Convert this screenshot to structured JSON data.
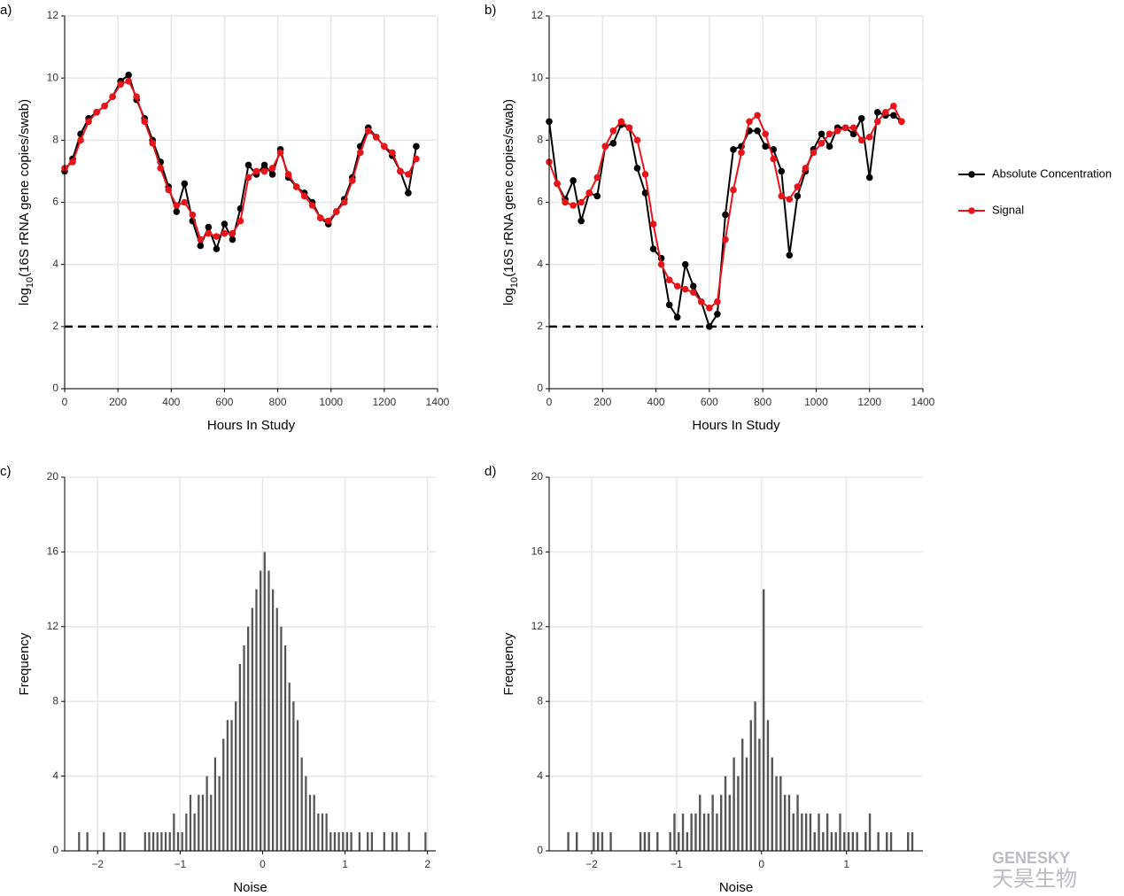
{
  "chart_data": [
    {
      "panel": "a)",
      "type": "line",
      "xlabel": "Hours In Study",
      "ylabel": {
        "prefix": "log",
        "sub": "10",
        "rest": "(16S rRNA gene copies/swab)"
      },
      "x": [
        0,
        30,
        60,
        90,
        120,
        150,
        180,
        210,
        240,
        270,
        300,
        330,
        360,
        390,
        420,
        450,
        480,
        510,
        540,
        570,
        600,
        630,
        660,
        690,
        720,
        750,
        780,
        810,
        840,
        870,
        900,
        930,
        960,
        990,
        1020,
        1050,
        1080,
        1110,
        1140,
        1170,
        1200,
        1230,
        1260,
        1290,
        1320
      ],
      "series": [
        {
          "color": "#000000",
          "values": [
            7.0,
            7.4,
            8.2,
            8.7,
            8.9,
            9.1,
            9.4,
            9.9,
            10.1,
            9.3,
            8.7,
            8.0,
            7.3,
            6.5,
            5.7,
            6.6,
            5.4,
            4.6,
            5.2,
            4.5,
            5.3,
            4.8,
            5.8,
            7.2,
            6.9,
            7.2,
            6.9,
            7.7,
            6.8,
            6.5,
            6.3,
            6.0,
            5.5,
            5.3,
            5.7,
            6.1,
            6.8,
            7.8,
            8.4,
            8.1,
            7.8,
            7.5,
            7.0,
            6.3,
            7.8
          ]
        },
        {
          "color": "#e8141a",
          "values": [
            7.1,
            7.3,
            8.0,
            8.6,
            8.9,
            9.1,
            9.4,
            9.8,
            9.9,
            9.4,
            8.6,
            7.9,
            7.1,
            6.4,
            5.9,
            6.0,
            5.6,
            4.8,
            5.0,
            4.9,
            5.0,
            5.0,
            5.4,
            6.8,
            7.0,
            7.0,
            7.1,
            7.6,
            6.9,
            6.5,
            6.2,
            5.9,
            5.5,
            5.4,
            5.7,
            6.0,
            6.7,
            7.6,
            8.3,
            8.1,
            7.8,
            7.6,
            7.0,
            6.9,
            7.4
          ]
        }
      ],
      "hline": 2,
      "xlim": [
        0,
        1400
      ],
      "xticks": [
        0,
        200,
        400,
        600,
        800,
        1000,
        1200,
        1400
      ],
      "ylim": [
        0,
        12
      ],
      "yticks": [
        0,
        2,
        4,
        6,
        8,
        10,
        12
      ],
      "grid": true
    },
    {
      "panel": "b)",
      "type": "line",
      "xlabel": "Hours In Study",
      "ylabel": {
        "prefix": "log",
        "sub": "10",
        "rest": "(16S rRNA gene copies/swab)"
      },
      "x": [
        0,
        30,
        60,
        90,
        120,
        150,
        180,
        210,
        240,
        270,
        300,
        330,
        360,
        390,
        420,
        450,
        480,
        510,
        540,
        570,
        600,
        630,
        660,
        690,
        720,
        750,
        780,
        810,
        840,
        870,
        900,
        930,
        960,
        990,
        1020,
        1050,
        1080,
        1110,
        1140,
        1170,
        1200,
        1230,
        1260,
        1290,
        1320
      ],
      "series": [
        {
          "color": "#000000",
          "values": [
            8.6,
            6.6,
            6.1,
            6.7,
            5.4,
            6.3,
            6.2,
            7.8,
            7.9,
            8.5,
            8.4,
            7.1,
            6.3,
            4.5,
            4.2,
            2.7,
            2.3,
            4.0,
            3.3,
            2.8,
            2.0,
            2.4,
            5.6,
            7.7,
            7.8,
            8.3,
            8.3,
            7.8,
            7.7,
            7.0,
            4.3,
            6.2,
            7.0,
            7.7,
            8.2,
            7.8,
            8.4,
            8.4,
            8.2,
            8.7,
            6.8,
            8.9,
            8.8,
            8.8,
            8.6
          ]
        },
        {
          "color": "#e8141a",
          "values": [
            7.3,
            6.6,
            6.0,
            5.9,
            6.0,
            6.3,
            6.8,
            7.8,
            8.3,
            8.6,
            8.4,
            8.0,
            6.9,
            5.3,
            4.0,
            3.5,
            3.3,
            3.2,
            3.1,
            2.8,
            2.6,
            2.8,
            4.8,
            6.4,
            7.6,
            8.6,
            8.8,
            8.2,
            7.4,
            6.2,
            6.1,
            6.5,
            7.1,
            7.6,
            7.9,
            8.2,
            8.3,
            8.4,
            8.4,
            8.0,
            8.1,
            8.6,
            8.9,
            9.1,
            8.6
          ]
        }
      ],
      "hline": 2,
      "xlim": [
        0,
        1400
      ],
      "xticks": [
        0,
        200,
        400,
        600,
        800,
        1000,
        1200,
        1400
      ],
      "ylim": [
        0,
        12
      ],
      "yticks": [
        0,
        2,
        4,
        6,
        8,
        10,
        12
      ],
      "grid": true
    },
    {
      "panel": "c)",
      "type": "histogram",
      "xlabel": "Noise",
      "ylabel": "Frequency",
      "color": "#555555",
      "bins": [
        -2.25,
        -2.2,
        -2.15,
        -2.1,
        -2.05,
        -2.0,
        -1.95,
        -1.9,
        -1.85,
        -1.8,
        -1.75,
        -1.7,
        -1.65,
        -1.6,
        -1.55,
        -1.5,
        -1.45,
        -1.4,
        -1.35,
        -1.3,
        -1.25,
        -1.2,
        -1.15,
        -1.1,
        -1.05,
        -1.0,
        -0.95,
        -0.9,
        -0.85,
        -0.8,
        -0.75,
        -0.7,
        -0.65,
        -0.6,
        -0.55,
        -0.5,
        -0.45,
        -0.4,
        -0.35,
        -0.3,
        -0.25,
        -0.2,
        -0.15,
        -0.1,
        -0.05,
        0,
        0.05,
        0.1,
        0.15,
        0.2,
        0.25,
        0.3,
        0.35,
        0.4,
        0.45,
        0.5,
        0.55,
        0.6,
        0.65,
        0.7,
        0.75,
        0.8,
        0.85,
        0.9,
        0.95,
        1.0,
        1.05,
        1.1,
        1.15,
        1.2,
        1.25,
        1.3,
        1.35,
        1.4,
        1.45,
        1.5,
        1.55,
        1.6,
        1.65,
        1.7,
        1.75,
        1.8,
        1.85,
        1.9,
        1.95,
        2.0
      ],
      "counts": [
        1,
        0,
        1,
        0,
        0,
        0,
        1,
        0,
        0,
        0,
        1,
        1,
        0,
        0,
        0,
        0,
        1,
        1,
        1,
        1,
        1,
        1,
        1,
        2,
        1,
        1,
        2,
        3,
        2,
        3,
        3,
        4,
        3,
        5,
        4,
        6,
        7,
        7,
        8,
        10,
        11,
        12,
        13,
        14,
        15,
        16,
        15,
        14,
        13,
        12,
        11,
        9,
        8,
        7,
        5,
        4,
        3,
        3,
        2,
        2,
        2,
        1,
        1,
        1,
        1,
        1,
        1,
        0,
        1,
        0,
        1,
        1,
        0,
        0,
        1,
        0,
        1,
        1,
        0,
        0,
        1,
        0,
        0,
        0,
        1
      ],
      "xlim": [
        -2.4,
        2.1
      ],
      "xticks": [
        {
          "value": -2,
          "label": "−2"
        },
        {
          "value": -1,
          "label": "−1"
        },
        0,
        1,
        2
      ],
      "ylim": [
        0,
        20
      ],
      "yticks": [
        0,
        4,
        8,
        12,
        16,
        20
      ],
      "grid": true
    },
    {
      "panel": "d)",
      "type": "histogram",
      "xlabel": "Noise",
      "ylabel": "Frequency",
      "color": "#555555",
      "bins": [
        -2.3,
        -2.25,
        -2.2,
        -2.15,
        -2.1,
        -2.05,
        -2.0,
        -1.95,
        -1.9,
        -1.85,
        -1.8,
        -1.75,
        -1.7,
        -1.65,
        -1.6,
        -1.55,
        -1.5,
        -1.45,
        -1.4,
        -1.35,
        -1.3,
        -1.25,
        -1.2,
        -1.15,
        -1.1,
        -1.05,
        -1.0,
        -0.95,
        -0.9,
        -0.85,
        -0.8,
        -0.75,
        -0.7,
        -0.65,
        -0.6,
        -0.55,
        -0.5,
        -0.45,
        -0.4,
        -0.35,
        -0.3,
        -0.25,
        -0.2,
        -0.15,
        -0.1,
        -0.05,
        0,
        0.05,
        0.1,
        0.15,
        0.2,
        0.25,
        0.3,
        0.35,
        0.4,
        0.45,
        0.5,
        0.55,
        0.6,
        0.65,
        0.7,
        0.75,
        0.8,
        0.85,
        0.9,
        0.95,
        1.0,
        1.05,
        1.1,
        1.15,
        1.2,
        1.25,
        1.3,
        1.35,
        1.4,
        1.45,
        1.5,
        1.55,
        1.6,
        1.65,
        1.7,
        1.75,
        1.8
      ],
      "counts": [
        1,
        0,
        1,
        0,
        0,
        0,
        1,
        1,
        1,
        0,
        1,
        0,
        0,
        0,
        0,
        0,
        0,
        1,
        1,
        1,
        0,
        1,
        0,
        0,
        1,
        2,
        1,
        2,
        1,
        2,
        2,
        3,
        2,
        2,
        3,
        2,
        3,
        4,
        3,
        5,
        4,
        6,
        5,
        7,
        8,
        6,
        14,
        7,
        5,
        4,
        4,
        3,
        3,
        2,
        3,
        2,
        2,
        2,
        1,
        2,
        1,
        2,
        1,
        1,
        2,
        1,
        1,
        1,
        1,
        0,
        1,
        2,
        0,
        1,
        0,
        1,
        1,
        0,
        0,
        0,
        1,
        1
      ],
      "xlim": [
        -2.5,
        1.9
      ],
      "xticks": [
        {
          "value": -2,
          "label": "−2"
        },
        {
          "value": -1,
          "label": "−1"
        },
        0,
        1
      ],
      "ylim": [
        0,
        20
      ],
      "yticks": [
        0,
        4,
        8,
        12,
        16,
        20
      ],
      "grid": true
    }
  ],
  "legend": [
    "Absolute Concentration",
    "Signal"
  ],
  "watermark": {
    "brand": "GENESKY",
    "cn": "天昊生物"
  }
}
